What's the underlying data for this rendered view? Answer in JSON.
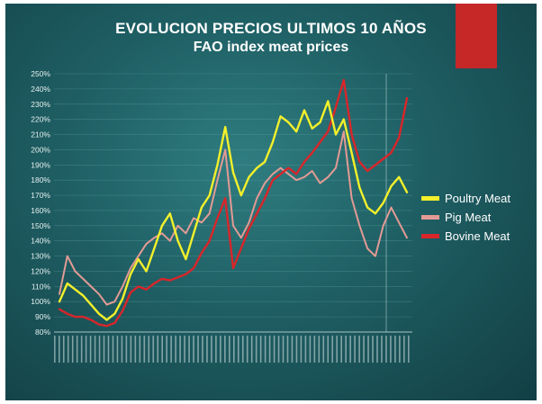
{
  "header": {
    "title_line1": "EVOLUCION PRECIOS ULTIMOS 10 AÑOS",
    "title_line2": "FAO index meat prices"
  },
  "colors": {
    "background": "#1e5e63",
    "accent_tab": "#c62828",
    "poultry": "#f3f02b",
    "pig": "#e39a94",
    "bovine": "#d8262a",
    "grid": "#5a9a9c"
  },
  "chart_data": {
    "type": "line",
    "title": "EVOLUCION PRECIOS ULTIMOS 10 AÑOS FAO index meat prices",
    "xlabel": "",
    "ylabel": "",
    "ylim": [
      80,
      250
    ],
    "y_ticks": [
      "80%",
      "90%",
      "100%",
      "110%",
      "120%",
      "130%",
      "140%",
      "150%",
      "160%",
      "170%",
      "180%",
      "190%",
      "200%",
      "210%",
      "220%",
      "230%",
      "240%",
      "250%"
    ],
    "grid": true,
    "legend_position": "right",
    "x_points": 45,
    "series": [
      {
        "name": "Poultry Meat",
        "values": [
          100,
          112,
          108,
          104,
          98,
          92,
          88,
          92,
          102,
          118,
          128,
          120,
          135,
          150,
          158,
          140,
          128,
          145,
          162,
          170,
          190,
          215,
          185,
          170,
          182,
          188,
          192,
          205,
          222,
          218,
          212,
          226,
          214,
          218,
          232,
          210,
          220,
          198,
          175,
          162,
          158,
          165,
          176,
          182,
          172
        ]
      },
      {
        "name": "Pig Meat",
        "values": [
          105,
          130,
          120,
          115,
          110,
          105,
          98,
          100,
          110,
          122,
          130,
          138,
          142,
          145,
          140,
          150,
          145,
          155,
          152,
          158,
          180,
          200,
          150,
          142,
          152,
          168,
          178,
          184,
          188,
          184,
          180,
          182,
          186,
          178,
          182,
          188,
          212,
          168,
          150,
          135,
          130,
          150,
          162,
          152,
          142
        ]
      },
      {
        "name": "Bovine Meat",
        "values": [
          95,
          92,
          90,
          90,
          88,
          85,
          84,
          86,
          94,
          106,
          110,
          108,
          112,
          115,
          114,
          116,
          118,
          122,
          132,
          140,
          155,
          168,
          122,
          135,
          148,
          158,
          168,
          180,
          184,
          188,
          184,
          192,
          198,
          205,
          212,
          228,
          246,
          210,
          192,
          186,
          190,
          194,
          198,
          208,
          234
        ]
      }
    ]
  }
}
